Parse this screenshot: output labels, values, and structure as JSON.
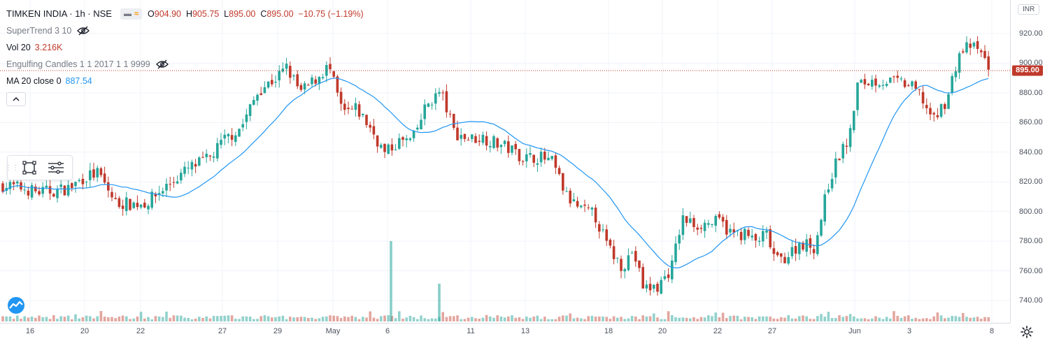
{
  "header": {
    "symbol": "TIMKEN INDIA · 1h · NSE",
    "chip_left": "▬",
    "chip_right": "≈",
    "ohlc": [
      {
        "k": "O",
        "v": "904.90"
      },
      {
        "k": "H",
        "v": "905.75"
      },
      {
        "k": "L",
        "v": "895.00"
      },
      {
        "k": "C",
        "v": "895.00"
      }
    ],
    "change": "−10.75 (−1.19%)"
  },
  "indicators": [
    {
      "name": "SuperTrend 3 10",
      "value": "",
      "hidden": true
    },
    {
      "name": "Vol 20",
      "value": "3.216K",
      "value_color": "red",
      "hidden": false
    },
    {
      "name": "Engulfing Candles 1 1 2017 1 1 9999",
      "value": "",
      "hidden": true
    },
    {
      "name": "MA 20 close 0",
      "value": "887.54",
      "value_color": "blue",
      "hidden": false
    }
  ],
  "price_axis": {
    "currency": "INR",
    "ticks": [
      "920.00",
      "900.00",
      "880.00",
      "860.00",
      "840.00",
      "820.00",
      "800.00",
      "780.00",
      "760.00",
      "740.00"
    ],
    "last_price_label": "895.00"
  },
  "time_axis": {
    "ticks": [
      "16",
      "20",
      "22",
      "27",
      "29",
      "May",
      "6",
      "11",
      "13",
      "18",
      "20",
      "22",
      "27",
      "Jun",
      "3",
      "8"
    ]
  },
  "chart_data": {
    "type": "candlestick",
    "y_range": [
      731,
      928
    ],
    "last_price": 895.0,
    "ma20": {
      "name": "MA 20 close 0",
      "color": "#2196f3"
    },
    "up_color": "#26a69a",
    "down_color": "#c0392b",
    "anchors": [
      [
        0,
        818
      ],
      [
        30,
        816
      ],
      [
        55,
        813
      ],
      [
        80,
        814
      ],
      [
        100,
        816
      ],
      [
        120,
        823
      ],
      [
        140,
        826
      ],
      [
        165,
        806
      ],
      [
        190,
        805
      ],
      [
        210,
        806
      ],
      [
        240,
        818
      ],
      [
        270,
        829
      ],
      [
        300,
        836
      ],
      [
        320,
        848
      ],
      [
        345,
        857
      ],
      [
        370,
        882
      ],
      [
        395,
        890
      ],
      [
        410,
        897
      ],
      [
        430,
        880
      ],
      [
        455,
        891
      ],
      [
        470,
        898
      ],
      [
        490,
        866
      ],
      [
        510,
        869
      ],
      [
        530,
        856
      ],
      [
        550,
        839
      ],
      [
        570,
        847
      ],
      [
        590,
        848
      ],
      [
        610,
        872
      ],
      [
        630,
        881
      ],
      [
        650,
        853
      ],
      [
        670,
        849
      ],
      [
        690,
        850
      ],
      [
        710,
        846
      ],
      [
        730,
        842
      ],
      [
        750,
        836
      ],
      [
        770,
        837
      ],
      [
        790,
        833
      ],
      [
        810,
        810
      ],
      [
        830,
        801
      ],
      [
        850,
        798
      ],
      [
        870,
        775
      ],
      [
        890,
        763
      ],
      [
        905,
        774
      ],
      [
        920,
        748
      ],
      [
        940,
        749
      ],
      [
        960,
        762
      ],
      [
        975,
        795
      ],
      [
        995,
        791
      ],
      [
        1010,
        792
      ],
      [
        1030,
        793
      ],
      [
        1045,
        785
      ],
      [
        1065,
        785
      ],
      [
        1080,
        779
      ],
      [
        1095,
        785
      ],
      [
        1110,
        766
      ],
      [
        1125,
        770
      ],
      [
        1145,
        779
      ],
      [
        1165,
        776
      ],
      [
        1185,
        820
      ],
      [
        1200,
        838
      ],
      [
        1215,
        850
      ],
      [
        1225,
        885
      ],
      [
        1245,
        888
      ],
      [
        1265,
        888
      ],
      [
        1285,
        887
      ],
      [
        1300,
        885
      ],
      [
        1315,
        879
      ],
      [
        1335,
        861
      ],
      [
        1355,
        877
      ],
      [
        1370,
        905
      ],
      [
        1385,
        912
      ],
      [
        1400,
        908
      ],
      [
        1414,
        898
      ]
    ],
    "volume_spikes": [
      {
        "x_date": "6 May",
        "relative": 1.0
      },
      {
        "x_date": "8 May",
        "relative": 0.47
      }
    ]
  }
}
